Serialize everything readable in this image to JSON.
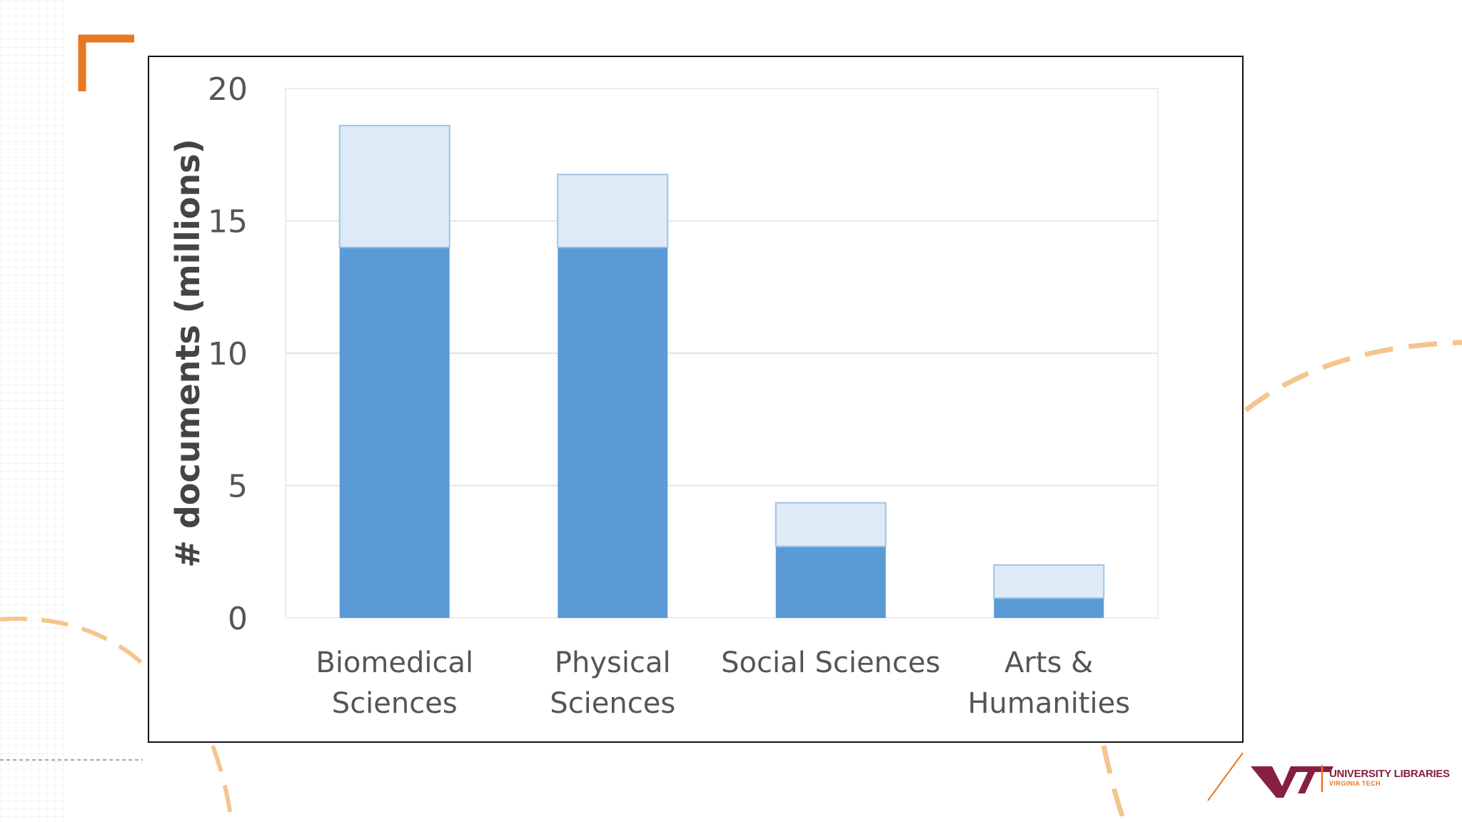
{
  "slide": {
    "logo_org": "UNIVERSITY LIBRARIES",
    "logo_sub": "VIRGINIA TECH",
    "logo_mark": "VT",
    "colors": {
      "accent_orange": "#e87722",
      "maroon": "#861f41",
      "bar_primary": "#5b9bd5",
      "bar_secondary": "#deeaf6"
    }
  },
  "chart_data": {
    "type": "bar",
    "stacked": true,
    "title": "",
    "xlabel": "",
    "ylabel": "# documents (millions)",
    "ylim": [
      0,
      20
    ],
    "yticks": [
      "0",
      "5",
      "10",
      "15",
      "20"
    ],
    "grid": true,
    "categories": [
      [
        "Biomedical",
        "Sciences"
      ],
      [
        "Physical",
        "Sciences"
      ],
      [
        "Social Sciences"
      ],
      [
        "Arts &",
        "Humanities"
      ]
    ],
    "series": [
      {
        "color": "#5b9bd5",
        "values": [
          14.0,
          14.0,
          2.7,
          0.75
        ]
      },
      {
        "color": "#deeaf6",
        "values": [
          4.6,
          2.75,
          1.65,
          1.25
        ]
      }
    ]
  }
}
